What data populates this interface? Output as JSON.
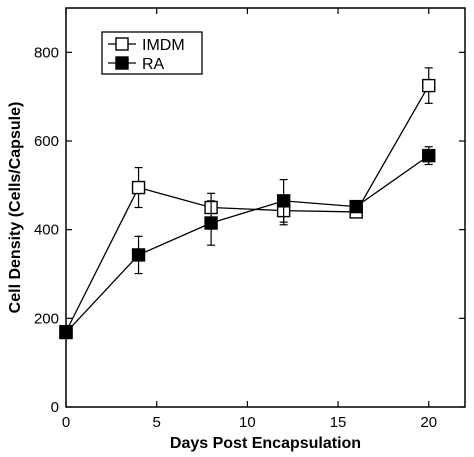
{
  "chart_data": {
    "type": "line",
    "xlabel": "Days Post Encapsulation",
    "ylabel": "Cell Density (Cells/Capsule)",
    "xlim": [
      0,
      22
    ],
    "ylim": [
      0,
      900
    ],
    "xticks": [
      0,
      5,
      10,
      15,
      20
    ],
    "yticks": [
      0,
      200,
      400,
      600,
      800
    ],
    "grid": false,
    "legend_position": "top-left",
    "series": [
      {
        "name": "IMDM",
        "marker": "open-square",
        "x": [
          0,
          4,
          8,
          12,
          16,
          20
        ],
        "y": [
          170,
          495,
          450,
          443,
          440,
          725
        ],
        "error": [
          0,
          45,
          32,
          32,
          0,
          40
        ]
      },
      {
        "name": "RA",
        "marker": "filled-square",
        "x": [
          0,
          4,
          8,
          12,
          16,
          20
        ],
        "y": [
          168,
          343,
          415,
          465,
          452,
          567
        ],
        "error": [
          0,
          42,
          50,
          48,
          0,
          20
        ]
      }
    ]
  }
}
